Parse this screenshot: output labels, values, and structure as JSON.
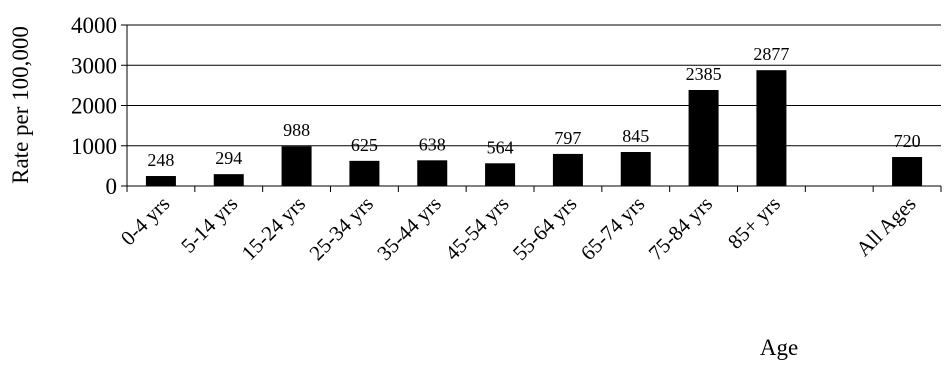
{
  "chart_data": {
    "type": "bar",
    "categories": [
      "0-4 yrs",
      "5-14 yrs",
      "15-24 yrs",
      "25-34 yrs",
      "35-44 yrs",
      "45-54 yrs",
      "55-64 yrs",
      "65-74 yrs",
      "75-84 yrs",
      "85+ yrs",
      "",
      "All Ages"
    ],
    "values": [
      248,
      294,
      988,
      625,
      638,
      564,
      797,
      845,
      2385,
      2877,
      null,
      720
    ],
    "data_labels": [
      "248",
      "294",
      "988",
      "625",
      "638",
      "564",
      "797",
      "845",
      "2385",
      "2877",
      "",
      "720"
    ],
    "xlabel": "Age",
    "ylabel": "Rate per 100,000",
    "ylim": [
      0,
      4000
    ],
    "yticks": [
      0,
      1000,
      2000,
      3000,
      4000
    ],
    "grid": true,
    "legend": "none",
    "bar_color": "#000000"
  }
}
